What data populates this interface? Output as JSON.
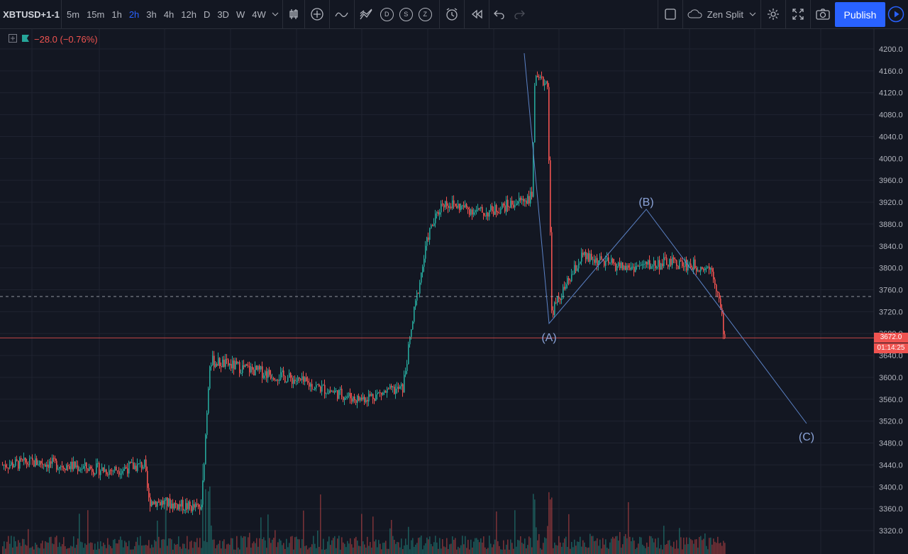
{
  "toolbar": {
    "symbol": "XBTUSD+1-1",
    "intervals": [
      "5m",
      "15m",
      "1h",
      "2h",
      "3h",
      "4h",
      "12h",
      "D",
      "3D",
      "W",
      "4W"
    ],
    "active_interval": "2h",
    "drawing_circles": [
      "D",
      "S",
      "Z"
    ],
    "layout_name": "Zen Split",
    "publish_label": "Publish"
  },
  "legend": {
    "change": "−28.0 (−0.76%)"
  },
  "colors": {
    "background": "#131722",
    "up": "#26a69a",
    "down": "#ef5350",
    "accent": "#2962ff",
    "drawing": "#5b82c6"
  },
  "price_axis": {
    "ticks": [
      "4200.0",
      "4160.0",
      "4120.0",
      "4080.0",
      "4040.0",
      "4000.0",
      "3960.0",
      "3920.0",
      "3880.0",
      "3840.0",
      "3800.0",
      "3760.0",
      "3720.0",
      "3680.0",
      "3640.0",
      "3600.0",
      "3560.0",
      "3520.0",
      "3480.0",
      "3440.0",
      "3400.0",
      "3360.0",
      "3320.0"
    ],
    "current_price": "3672.0",
    "countdown": "01:14:25"
  },
  "wave_labels": [
    "(A)",
    "(B)",
    "(C)"
  ],
  "chart_data": {
    "type": "candlestick",
    "symbol": "XBTUSD+1-1",
    "interval": "2h",
    "ylim": [
      3300,
      4220
    ],
    "last_price": 3672.0,
    "waypoints": [
      {
        "i": 0,
        "p": 3440
      },
      {
        "i": 25,
        "p": 3445
      },
      {
        "i": 75,
        "p": 3430
      },
      {
        "i": 100,
        "p": 3440
      },
      {
        "i": 103,
        "p": 3375
      },
      {
        "i": 140,
        "p": 3360
      },
      {
        "i": 146,
        "p": 3630
      },
      {
        "i": 200,
        "p": 3600
      },
      {
        "i": 250,
        "p": 3560
      },
      {
        "i": 282,
        "p": 3580
      },
      {
        "i": 290,
        "p": 3720
      },
      {
        "i": 300,
        "p": 3860
      },
      {
        "i": 310,
        "p": 3920
      },
      {
        "i": 340,
        "p": 3900
      },
      {
        "i": 373,
        "p": 3930
      },
      {
        "i": 375,
        "p": 4140
      },
      {
        "i": 384,
        "p": 4140
      },
      {
        "i": 387,
        "p": 3720
      },
      {
        "i": 400,
        "p": 3780
      },
      {
        "i": 408,
        "p": 3820
      },
      {
        "i": 440,
        "p": 3800
      },
      {
        "i": 470,
        "p": 3810
      },
      {
        "i": 500,
        "p": 3800
      },
      {
        "i": 505,
        "p": 3740
      },
      {
        "i": 509,
        "p": 3672
      }
    ]
  }
}
